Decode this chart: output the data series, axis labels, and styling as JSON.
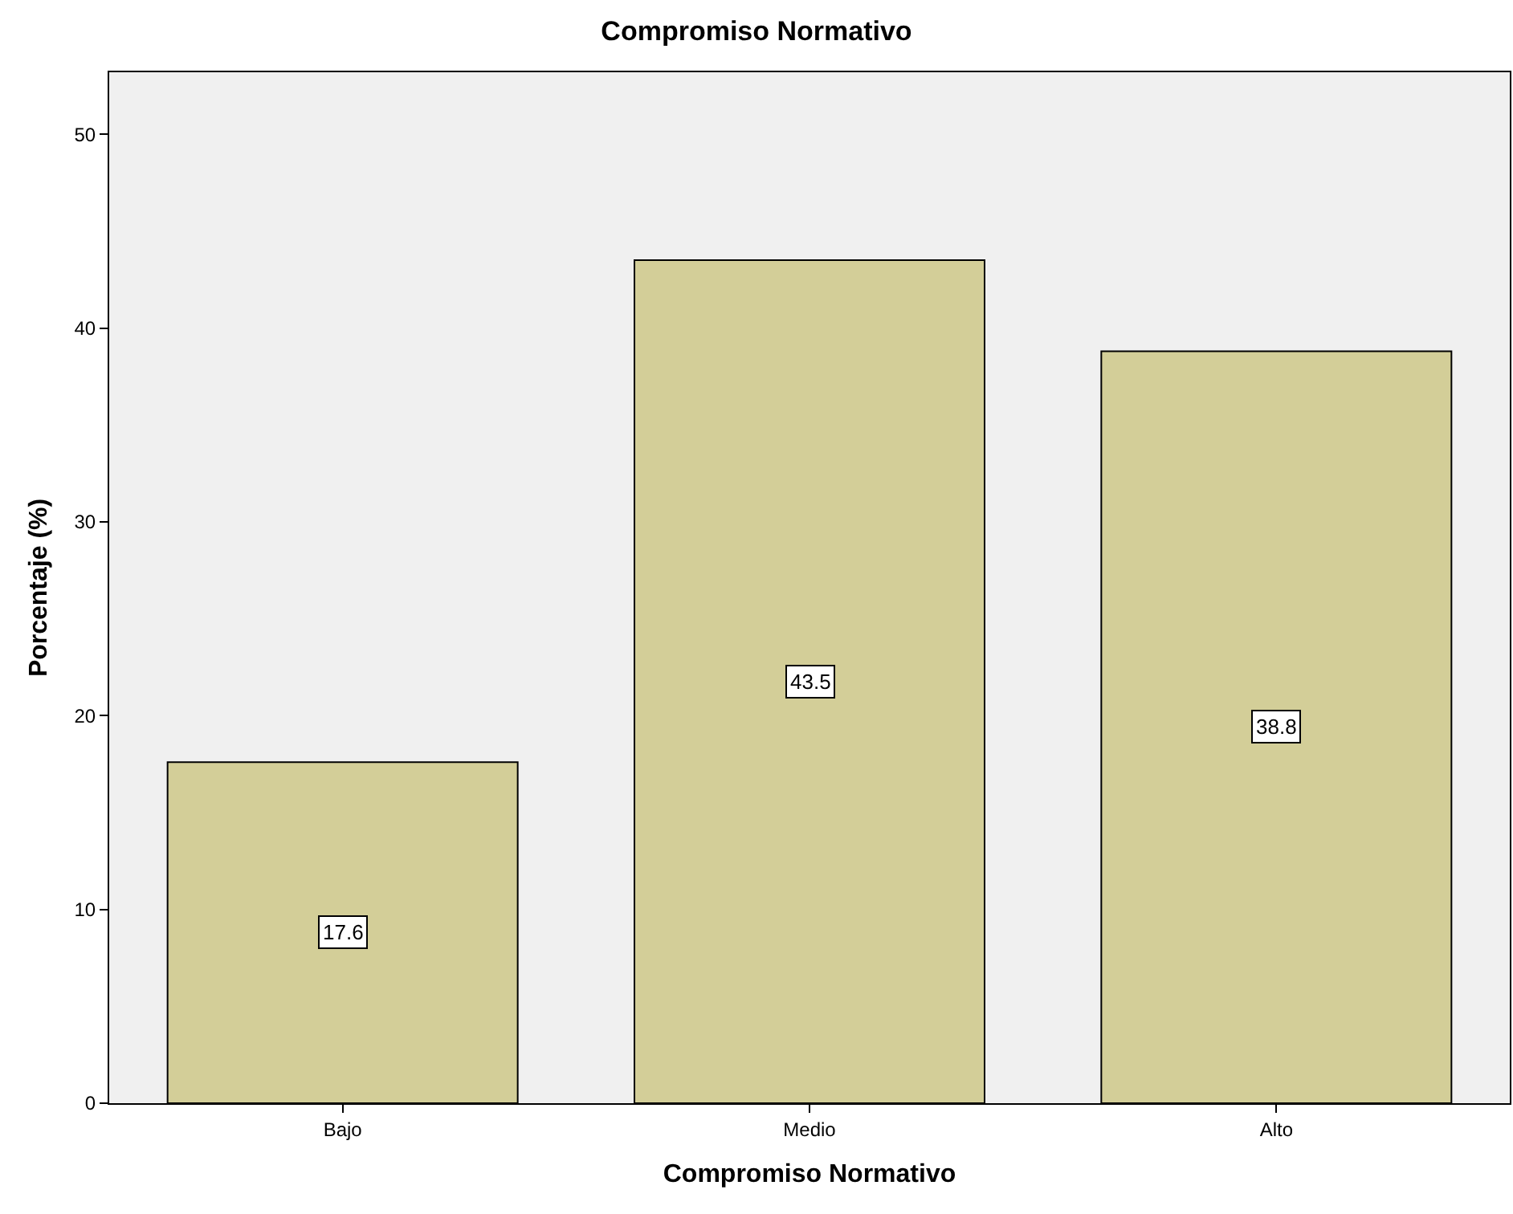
{
  "chart_data": {
    "type": "bar",
    "title": "Compromiso Normativo",
    "xlabel": "Compromiso Normativo",
    "ylabel": "Porcentaje (%)",
    "categories": [
      "Bajo",
      "Medio",
      "Alto"
    ],
    "values": [
      17.6,
      43.5,
      38.8
    ],
    "color": "#d3ce98",
    "ylim": [
      0,
      53.2
    ],
    "yticks": [
      0,
      10,
      20,
      30,
      40,
      50
    ],
    "grid": false,
    "legend": false,
    "data_labels": true
  }
}
